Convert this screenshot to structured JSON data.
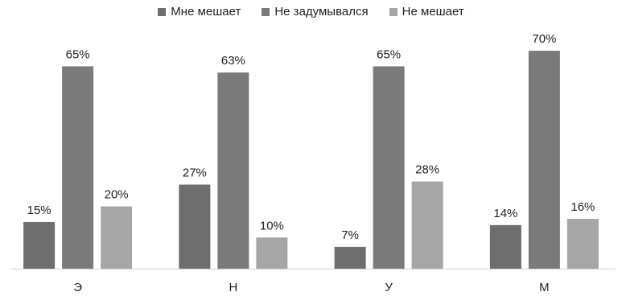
{
  "chart_data": {
    "type": "bar",
    "title": "",
    "xlabel": "",
    "ylabel": "",
    "ylim": [
      0,
      70
    ],
    "grid": false,
    "legend_position": "top",
    "categories": [
      "Э",
      "Н",
      "У",
      "М"
    ],
    "series": [
      {
        "name": "Мне мешает",
        "values": [
          15,
          27,
          7,
          14
        ],
        "labels": [
          "15%",
          "27%",
          "7%",
          "14%"
        ],
        "color": "#6e6e6e"
      },
      {
        "name": "Не задумывался",
        "values": [
          65,
          63,
          65,
          70
        ],
        "labels": [
          "65%",
          "63%",
          "65%",
          "70%"
        ],
        "color": "#7a7a7a"
      },
      {
        "name": "Не мешает",
        "values": [
          20,
          10,
          28,
          16
        ],
        "labels": [
          "20%",
          "10%",
          "28%",
          "16%"
        ],
        "color": "#a6a6a6"
      }
    ]
  }
}
